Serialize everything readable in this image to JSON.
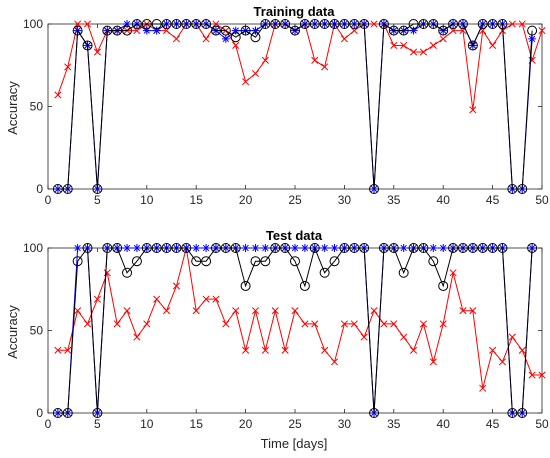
{
  "colors": {
    "black_series": "#000000",
    "blue_series": "#0000ff",
    "red_series": "#ff0000",
    "axis": "#262626",
    "background": "#ffffff"
  },
  "chart_data": [
    {
      "type": "line",
      "title": "Training data",
      "xlabel": "",
      "ylabel": "Accuracy",
      "xlim": [
        0,
        50
      ],
      "ylim": [
        0,
        100
      ],
      "xticks": [
        0,
        5,
        10,
        15,
        20,
        25,
        30,
        35,
        40,
        45,
        50
      ],
      "yticks": [
        0,
        50,
        100
      ],
      "grid": false,
      "x": [
        1,
        2,
        3,
        4,
        5,
        6,
        7,
        8,
        9,
        10,
        11,
        12,
        13,
        14,
        15,
        16,
        17,
        18,
        19,
        20,
        21,
        22,
        23,
        24,
        25,
        26,
        27,
        28,
        29,
        30,
        31,
        32,
        33,
        34,
        35,
        36,
        37,
        38,
        39,
        40,
        41,
        42,
        43,
        44,
        45,
        46,
        47,
        48,
        49,
        50
      ],
      "series": [
        {
          "marker": "circle",
          "color": "#000000",
          "values": [
            0,
            0,
            96,
            87,
            0,
            96,
            96,
            96,
            100,
            100,
            100,
            100,
            100,
            100,
            100,
            100,
            96,
            96,
            92,
            96,
            92,
            100,
            100,
            100,
            96,
            100,
            100,
            100,
            100,
            100,
            100,
            100,
            0,
            100,
            96,
            96,
            100,
            100,
            100,
            96,
            100,
            100,
            87,
            100,
            100,
            100,
            0,
            0,
            96,
            null
          ]
        },
        {
          "marker": "asterisk",
          "color": "#0000ff",
          "values": [
            0,
            0,
            96,
            87,
            0,
            96,
            96,
            100,
            100,
            96,
            96,
            100,
            100,
            100,
            100,
            100,
            96,
            91,
            96,
            96,
            96,
            100,
            100,
            100,
            96,
            100,
            100,
            100,
            100,
            100,
            100,
            100,
            0,
            100,
            96,
            96,
            96,
            100,
            100,
            96,
            100,
            100,
            87,
            100,
            100,
            100,
            0,
            0,
            91,
            null
          ]
        },
        {
          "marker": "x",
          "color": "#ff0000",
          "values": [
            57,
            74,
            100,
            100,
            83,
            96,
            96,
            96,
            96,
            100,
            96,
            96,
            91,
            100,
            100,
            91,
            100,
            96,
            87,
            65,
            70,
            78,
            100,
            100,
            96,
            100,
            78,
            74,
            100,
            91,
            96,
            100,
            100,
            100,
            87,
            87,
            83,
            83,
            87,
            91,
            96,
            96,
            48,
            96,
            87,
            96,
            100,
            100,
            78,
            96
          ]
        }
      ]
    },
    {
      "type": "line",
      "title": "Test data",
      "xlabel": "Time [days]",
      "ylabel": "Accuracy",
      "xlim": [
        0,
        50
      ],
      "ylim": [
        0,
        100
      ],
      "xticks": [
        0,
        5,
        10,
        15,
        20,
        25,
        30,
        35,
        40,
        45,
        50
      ],
      "yticks": [
        0,
        50,
        100
      ],
      "grid": false,
      "x": [
        1,
        2,
        3,
        4,
        5,
        6,
        7,
        8,
        9,
        10,
        11,
        12,
        13,
        14,
        15,
        16,
        17,
        18,
        19,
        20,
        21,
        22,
        23,
        24,
        25,
        26,
        27,
        28,
        29,
        30,
        31,
        32,
        33,
        34,
        35,
        36,
        37,
        38,
        39,
        40,
        41,
        42,
        43,
        44,
        45,
        46,
        47,
        48,
        49,
        50
      ],
      "series": [
        {
          "marker": "circle",
          "color": "#000000",
          "values": [
            0,
            0,
            92,
            100,
            0,
            100,
            100,
            85,
            92,
            100,
            100,
            100,
            100,
            100,
            92,
            92,
            100,
            100,
            100,
            77,
            92,
            92,
            100,
            100,
            92,
            77,
            100,
            85,
            92,
            100,
            100,
            100,
            0,
            100,
            100,
            85,
            100,
            100,
            92,
            77,
            100,
            100,
            100,
            100,
            100,
            100,
            0,
            0,
            100,
            null
          ]
        },
        {
          "marker": "asterisk",
          "color": "#0000ff",
          "values": [
            0,
            0,
            100,
            100,
            0,
            100,
            100,
            100,
            100,
            100,
            100,
            100,
            100,
            100,
            100,
            100,
            100,
            100,
            100,
            100,
            100,
            100,
            100,
            100,
            100,
            100,
            100,
            100,
            100,
            100,
            100,
            100,
            0,
            100,
            100,
            100,
            100,
            100,
            100,
            100,
            100,
            100,
            100,
            100,
            100,
            100,
            0,
            0,
            100,
            null
          ]
        },
        {
          "marker": "x",
          "color": "#ff0000",
          "values": [
            38,
            38,
            62,
            54,
            69,
            85,
            54,
            62,
            46,
            54,
            69,
            62,
            77,
            100,
            62,
            69,
            69,
            54,
            62,
            38,
            62,
            38,
            62,
            38,
            62,
            54,
            54,
            38,
            31,
            54,
            54,
            46,
            62,
            54,
            54,
            46,
            38,
            54,
            31,
            54,
            85,
            62,
            62,
            15,
            38,
            31,
            46,
            38,
            23,
            23
          ]
        }
      ]
    }
  ]
}
